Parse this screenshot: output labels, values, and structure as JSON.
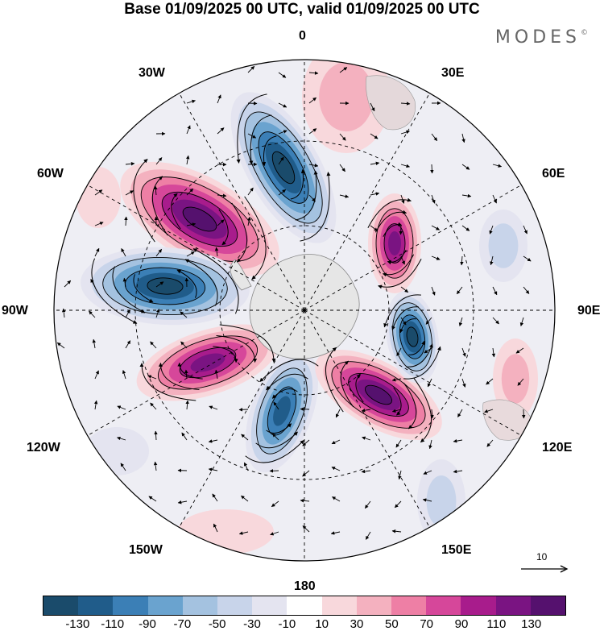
{
  "title": "Base 01/09/2025 00 UTC, valid 01/09/2025 00 UTC",
  "brand": "MODES",
  "brand_mark": "©",
  "lon_labels": {
    "lon_0": "0",
    "lon_30e": "30E",
    "lon_60e": "60E",
    "lon_90e": "90E",
    "lon_120e": "120E",
    "lon_150e": "150E",
    "lon_180": "180",
    "lon_150w": "150W",
    "lon_120w": "120W",
    "lon_90w": "90W",
    "lon_60w": "60W",
    "lon_30w": "30W"
  },
  "reference_vector": "10",
  "legend": {
    "colors": [
      "#1a4b6b",
      "#205c8a",
      "#3b7fb6",
      "#6aa3cf",
      "#a4c2e0",
      "#c8d4ea",
      "#e4e4f0",
      "#ffffff",
      "#f8d8dc",
      "#f4b1bf",
      "#ee7fa5",
      "#d6479a",
      "#a81c8c",
      "#7a1482",
      "#55116e"
    ],
    "ticks": [
      "-130",
      "-110",
      "-90",
      "-70",
      "-50",
      "-30",
      "-10",
      "10",
      "30",
      "50",
      "70",
      "90",
      "110",
      "130"
    ]
  },
  "chart_data": {
    "type": "polar-stereographic-map",
    "field": "shaded anomaly with wind vectors",
    "color_levels": [
      -130,
      -110,
      -90,
      -70,
      -50,
      -30,
      -10,
      10,
      30,
      50,
      70,
      90,
      110,
      130
    ],
    "anomaly_centers": [
      {
        "lon": "15W",
        "sign": "negative",
        "approx_value": -130
      },
      {
        "lon": "45W",
        "sign": "positive",
        "approx_value": 130
      },
      {
        "lon": "80W",
        "sign": "negative",
        "approx_value": -130
      },
      {
        "lon": "115W",
        "sign": "positive",
        "approx_value": 110
      },
      {
        "lon": "165W",
        "sign": "negative",
        "approx_value": -110
      },
      {
        "lon": "145E",
        "sign": "positive",
        "approx_value": 130
      },
      {
        "lon": "95E",
        "sign": "negative",
        "approx_value": -130
      },
      {
        "lon": "55E",
        "sign": "positive",
        "approx_value": 110
      }
    ]
  }
}
